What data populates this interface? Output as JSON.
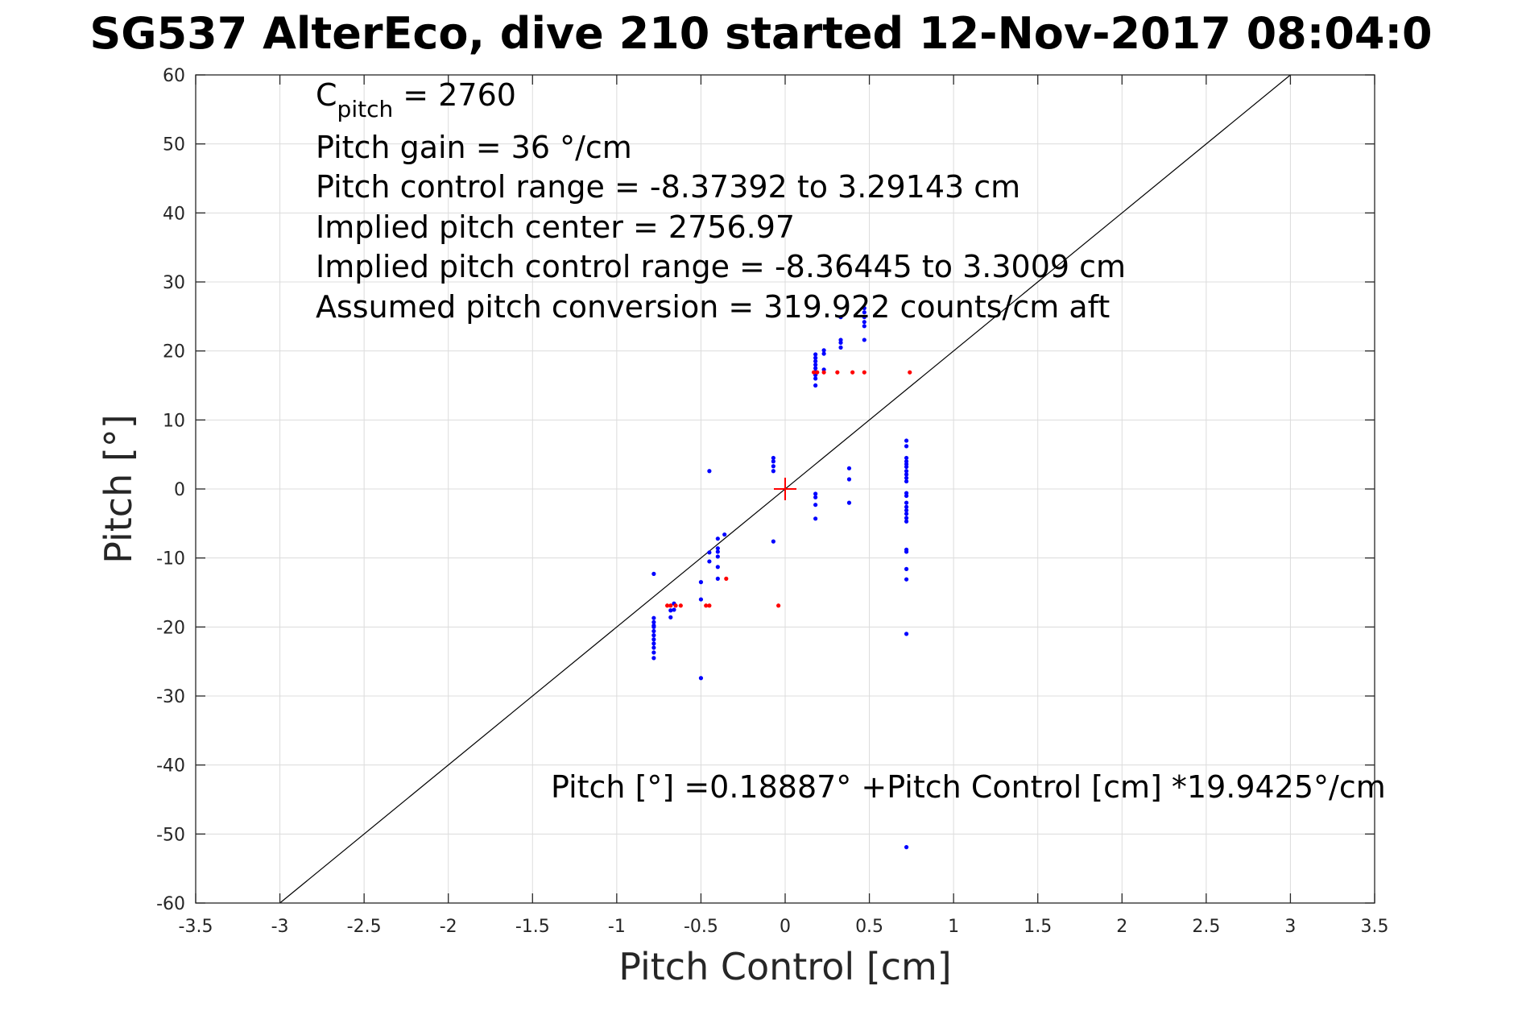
{
  "chart_data": {
    "type": "scatter",
    "title": "SG537 AlterEco, dive 210 started 12-Nov-2017 08:04:0",
    "xlabel": "Pitch Control [cm]",
    "ylabel": "Pitch [°]",
    "xlim": [
      -3.5,
      3.5
    ],
    "ylim": [
      -60,
      60
    ],
    "xticks": [
      -3.5,
      -3,
      -2.5,
      -2,
      -1.5,
      -1,
      -0.5,
      0,
      0.5,
      1,
      1.5,
      2,
      2.5,
      3,
      3.5
    ],
    "xtick_labels": [
      "-3.5",
      "-3",
      "-2.5",
      "-2",
      "-1.5",
      "-1",
      "-0.5",
      "0",
      "0.5",
      "1",
      "1.5",
      "2",
      "2.5",
      "3",
      "3.5"
    ],
    "yticks": [
      -60,
      -50,
      -40,
      -30,
      -20,
      -10,
      0,
      10,
      20,
      30,
      40,
      50,
      60
    ],
    "ytick_labels": [
      "-60",
      "-50",
      "-40",
      "-30",
      "-20",
      "-10",
      "0",
      "10",
      "20",
      "30",
      "40",
      "50",
      "60"
    ],
    "grid": true,
    "annotations": {
      "c_pitch_main": "C",
      "c_pitch_sub": "pitch",
      "c_pitch_value": " = 2760",
      "lines": [
        "Pitch gain = 36 °/cm",
        "Pitch control range = -8.37392 to 3.29143 cm",
        "Implied pitch center = 2756.97",
        "Implied pitch control range = -8.36445 to 3.3009 cm",
        "Assumed pitch conversion = 319.922 counts/cm aft"
      ],
      "fit_equation": "Pitch [°] =0.18887° +Pitch Control [cm] *19.9425°/cm"
    },
    "series": [
      {
        "color": "#0000ff",
        "x": [
          -0.78,
          -0.78,
          -0.78,
          -0.78,
          -0.78,
          -0.78,
          -0.78,
          -0.78,
          -0.78,
          -0.78,
          -0.78,
          -0.78,
          -0.68,
          -0.68,
          -0.66,
          -0.66,
          -0.5,
          -0.5,
          -0.5,
          -0.45,
          -0.45,
          -0.45,
          -0.4,
          -0.4,
          -0.4,
          -0.4,
          -0.4,
          -0.4,
          -0.36,
          -0.07,
          -0.07,
          -0.07,
          -0.07,
          -0.07,
          0.18,
          0.18,
          0.18,
          0.18,
          0.18,
          0.18,
          0.18,
          0.18,
          0.18,
          0.18,
          0.18,
          0.18,
          0.18,
          0.23,
          0.23,
          0.23,
          0.33,
          0.33,
          0.33,
          0.33,
          0.38,
          0.38,
          0.38,
          0.47,
          0.47,
          0.47,
          0.47,
          0.47,
          0.47,
          0.72,
          0.72,
          0.72,
          0.72,
          0.72,
          0.72,
          0.72,
          0.72,
          0.72,
          0.72,
          0.72,
          0.72,
          0.72,
          0.72,
          0.72,
          0.72,
          0.72,
          0.72,
          0.72,
          0.72,
          0.72,
          0.72,
          0.72,
          0.72
        ],
        "y": [
          -12.3,
          -18.7,
          -19.3,
          -20.0,
          -20.6,
          -21.2,
          -21.8,
          -22.4,
          -23.0,
          -23.7,
          -24.5,
          -19.8,
          -17.6,
          -18.6,
          -16.6,
          -17.5,
          -13.5,
          -16.0,
          -27.4,
          2.6,
          -9.2,
          -10.5,
          -7.2,
          -8.6,
          -9.1,
          -9.8,
          -11.3,
          -13.0,
          -6.6,
          4.5,
          4.0,
          3.3,
          2.6,
          -7.6,
          15.0,
          16.0,
          16.5,
          17.0,
          17.5,
          18.0,
          18.5,
          19.0,
          19.5,
          -0.7,
          -1.2,
          -2.3,
          -4.3,
          17.3,
          19.6,
          20.1,
          20.5,
          21.2,
          21.6,
          24.9,
          3.0,
          1.4,
          -2.0,
          21.6,
          23.6,
          24.2,
          24.9,
          25.6,
          26.2,
          7.0,
          6.2,
          4.5,
          4.0,
          3.6,
          3.2,
          2.6,
          2.1,
          1.6,
          1.1,
          -0.6,
          -1.0,
          -2.0,
          -2.6,
          -3.1,
          -3.6,
          -4.2,
          -4.7,
          -8.8,
          -9.1,
          -11.6,
          -13.1,
          -21.0,
          -51.9
        ]
      },
      {
        "color": "#ff0000",
        "x": [
          -0.7,
          -0.68,
          -0.65,
          -0.62,
          -0.47,
          -0.45,
          -0.35,
          -0.04,
          0.17,
          0.19,
          0.23,
          0.31,
          0.4,
          0.47,
          0.74
        ],
        "y": [
          -16.9,
          -16.9,
          -16.9,
          -16.9,
          -16.9,
          -16.9,
          -13.0,
          -16.9,
          16.9,
          16.9,
          16.9,
          16.9,
          16.9,
          16.9,
          16.9
        ]
      }
    ],
    "fit_line": {
      "color": "#000000",
      "x": [
        -3,
        3
      ],
      "y": [
        -60,
        60
      ]
    },
    "center_marker": {
      "color": "#ff0000",
      "x": 0,
      "y": 0
    }
  }
}
